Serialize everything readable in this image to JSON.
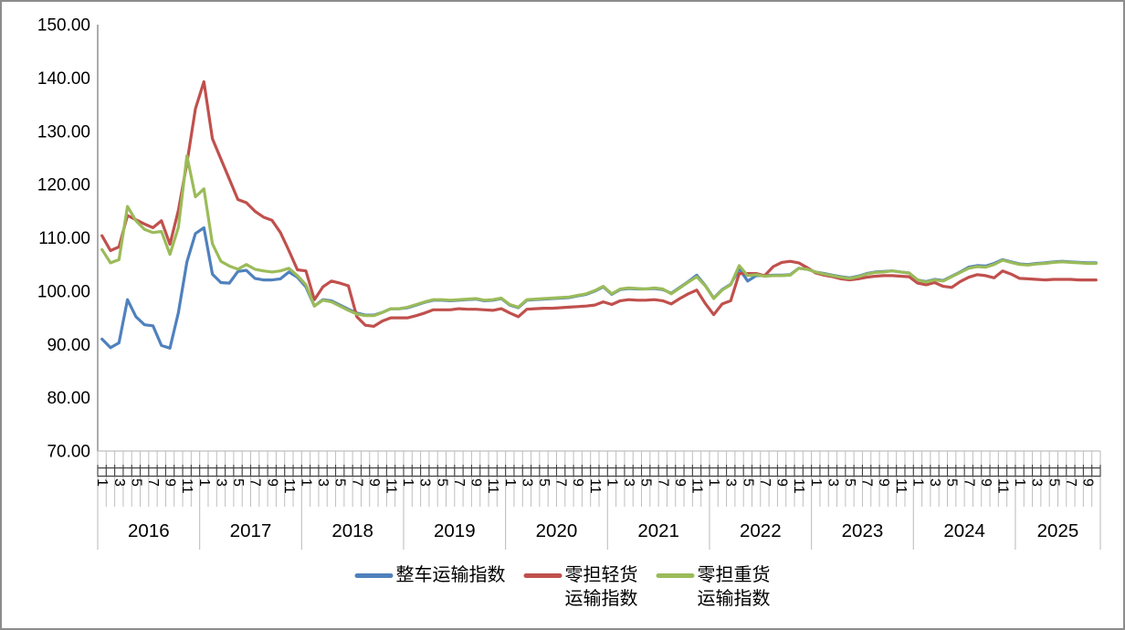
{
  "chart_data": {
    "type": "line",
    "title": "",
    "grid": "off",
    "legend_position": "bottom",
    "y_axis": {
      "min": 70,
      "max": 150,
      "step": 10,
      "tick_labels": [
        "150.00",
        "140.00",
        "130.00",
        "120.00",
        "110.00",
        "100.00",
        "90.00",
        "80.00",
        "70.00"
      ]
    },
    "x_axis": {
      "unit": "month",
      "years": [
        {
          "label": "2016",
          "month_count": 12,
          "labeled_months": [
            1,
            3,
            5,
            7,
            9,
            11
          ]
        },
        {
          "label": "2017",
          "month_count": 12,
          "labeled_months": [
            1,
            3,
            5,
            7,
            9,
            11
          ]
        },
        {
          "label": "2018",
          "month_count": 12,
          "labeled_months": [
            1,
            3,
            5,
            7,
            9,
            11
          ]
        },
        {
          "label": "2019",
          "month_count": 12,
          "labeled_months": [
            1,
            3,
            5,
            7,
            9,
            11
          ]
        },
        {
          "label": "2020",
          "month_count": 12,
          "labeled_months": [
            1,
            3,
            5,
            7,
            9,
            11
          ]
        },
        {
          "label": "2021",
          "month_count": 12,
          "labeled_months": [
            1,
            3,
            5,
            7,
            9,
            11
          ]
        },
        {
          "label": "2022",
          "month_count": 12,
          "labeled_months": [
            1,
            3,
            5,
            7,
            9,
            11
          ]
        },
        {
          "label": "2023",
          "month_count": 12,
          "labeled_months": [
            1,
            3,
            5,
            7,
            9,
            11
          ]
        },
        {
          "label": "2024",
          "month_count": 12,
          "labeled_months": [
            1,
            3,
            5,
            7,
            9,
            11
          ]
        },
        {
          "label": "2025",
          "month_count": 10,
          "labeled_months": [
            1,
            3,
            5,
            7,
            9
          ]
        }
      ]
    },
    "series": [
      {
        "name": "整车运输指数",
        "legend_lines": [
          "整车运输指数"
        ],
        "color": "#4F81BD",
        "values": [
          91.0,
          89.4,
          90.3,
          98.4,
          95.2,
          93.7,
          93.5,
          89.8,
          89.3,
          96.0,
          105.5,
          110.8,
          111.9,
          103.2,
          101.6,
          101.5,
          103.7,
          103.9,
          102.4,
          102.1,
          102.1,
          102.3,
          103.6,
          102.6,
          100.8,
          97.2,
          98.4,
          98.2,
          97.4,
          96.6,
          95.9,
          95.5,
          95.5,
          96.0,
          96.7,
          96.7,
          96.9,
          97.4,
          97.9,
          98.3,
          98.3,
          98.2,
          98.3,
          98.4,
          98.5,
          98.2,
          98.3,
          98.6,
          97.4,
          96.9,
          98.3,
          98.4,
          98.5,
          98.6,
          98.7,
          98.8,
          99.1,
          99.4,
          100.0,
          100.8,
          99.4,
          100.3,
          100.5,
          100.4,
          100.4,
          100.5,
          100.3,
          99.6,
          100.7,
          101.8,
          103.0,
          101.1,
          98.7,
          100.3,
          101.3,
          104.2,
          101.9,
          102.9,
          102.9,
          103.0,
          103.0,
          103.1,
          104.3,
          104.1,
          103.6,
          103.3,
          103.0,
          102.7,
          102.5,
          102.8,
          103.3,
          103.6,
          103.7,
          103.8,
          103.6,
          103.4,
          102.1,
          101.8,
          102.2,
          102.0,
          102.8,
          103.6,
          104.5,
          104.8,
          104.7,
          105.2,
          105.9,
          105.5,
          105.1,
          105.0,
          105.2,
          105.3,
          105.5,
          105.6,
          105.5,
          105.4,
          105.3,
          105.3
        ]
      },
      {
        "name": "零担轻货运输指数",
        "legend_lines": [
          "零担轻货",
          "运输指数"
        ],
        "color": "#C0504D",
        "values": [
          110.4,
          107.6,
          108.3,
          114.2,
          113.4,
          112.6,
          111.9,
          113.2,
          108.8,
          115.2,
          124.0,
          134.2,
          139.3,
          128.6,
          124.8,
          121.0,
          117.2,
          116.6,
          115.0,
          113.9,
          113.3,
          111.0,
          107.6,
          104.0,
          103.8,
          98.4,
          100.8,
          101.9,
          101.5,
          101.0,
          95.2,
          93.6,
          93.4,
          94.4,
          95.0,
          95.0,
          95.0,
          95.4,
          95.9,
          96.5,
          96.5,
          96.5,
          96.7,
          96.6,
          96.6,
          96.5,
          96.4,
          96.7,
          95.9,
          95.2,
          96.6,
          96.7,
          96.8,
          96.8,
          96.9,
          97.0,
          97.1,
          97.2,
          97.4,
          98.0,
          97.5,
          98.2,
          98.4,
          98.3,
          98.3,
          98.4,
          98.2,
          97.6,
          98.6,
          99.5,
          100.2,
          97.7,
          95.6,
          97.6,
          98.2,
          103.3,
          103.3,
          103.3,
          102.9,
          104.6,
          105.4,
          105.6,
          105.3,
          104.4,
          103.4,
          103.0,
          102.7,
          102.3,
          102.1,
          102.3,
          102.6,
          102.8,
          102.9,
          102.9,
          102.8,
          102.7,
          101.5,
          101.2,
          101.6,
          100.9,
          100.7,
          101.8,
          102.6,
          103.1,
          102.9,
          102.5,
          103.8,
          103.2,
          102.4,
          102.3,
          102.2,
          102.1,
          102.2,
          102.2,
          102.2,
          102.1,
          102.1,
          102.1
        ]
      },
      {
        "name": "零担重货运输指数",
        "legend_lines": [
          "零担重货",
          "运输指数"
        ],
        "color": "#9BBB59",
        "values": [
          107.8,
          105.3,
          105.9,
          115.9,
          113.2,
          111.6,
          111.0,
          111.2,
          106.9,
          112.0,
          125.4,
          117.7,
          119.2,
          108.9,
          105.6,
          104.7,
          104.1,
          105.0,
          104.1,
          103.8,
          103.6,
          103.8,
          104.3,
          102.9,
          101.2,
          97.2,
          98.3,
          98.0,
          97.2,
          96.4,
          95.7,
          95.4,
          95.4,
          96.0,
          96.7,
          96.7,
          97.0,
          97.5,
          98.0,
          98.4,
          98.4,
          98.3,
          98.4,
          98.5,
          98.6,
          98.3,
          98.4,
          98.7,
          97.5,
          97.0,
          98.4,
          98.5,
          98.6,
          98.7,
          98.8,
          98.9,
          99.2,
          99.5,
          100.1,
          100.9,
          99.5,
          100.4,
          100.6,
          100.5,
          100.4,
          100.6,
          100.4,
          99.5,
          100.6,
          101.7,
          102.7,
          101.0,
          98.6,
          100.2,
          101.2,
          104.8,
          102.9,
          103.1,
          102.8,
          102.9,
          102.9,
          103.0,
          104.3,
          104.1,
          103.6,
          103.2,
          102.9,
          102.6,
          102.4,
          102.7,
          103.2,
          103.5,
          103.6,
          103.8,
          103.6,
          103.4,
          102.1,
          101.7,
          102.1,
          101.9,
          102.7,
          103.5,
          104.3,
          104.6,
          104.5,
          105.0,
          105.8,
          105.4,
          105.0,
          104.9,
          105.1,
          105.2,
          105.4,
          105.5,
          105.4,
          105.3,
          105.2,
          105.2
        ]
      }
    ]
  },
  "style": {
    "axis_line_color": "#a3a3a3",
    "cell_line_color": "#bfbfbf",
    "tick_band_color": "#404040",
    "text_color": "#000000",
    "line_width": 3.2
  }
}
